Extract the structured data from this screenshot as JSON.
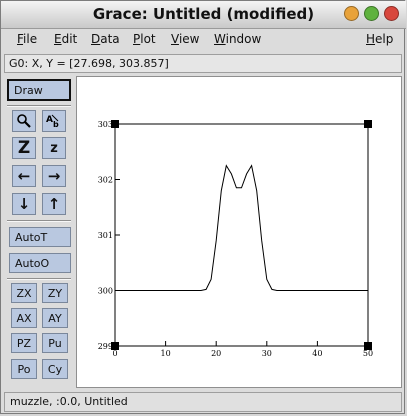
{
  "window": {
    "title": "Grace: Untitled (modified)",
    "buttons": [
      {
        "name": "minimize-button",
        "color": "#e8a23a"
      },
      {
        "name": "maximize-button",
        "color": "#5fb23e"
      },
      {
        "name": "close-button",
        "color": "#d8473d"
      }
    ]
  },
  "menu": {
    "file": {
      "u": "F",
      "rest": "ile"
    },
    "edit": {
      "u": "E",
      "rest": "dit"
    },
    "data": {
      "u": "D",
      "rest": "ata"
    },
    "plot": {
      "u": "P",
      "rest": "lot"
    },
    "view": {
      "u": "V",
      "rest": "iew"
    },
    "window": {
      "u": "W",
      "rest": "indow"
    },
    "help": {
      "u": "H",
      "rest": "elp"
    }
  },
  "coords": "G0: X, Y = [27.698, 303.857]",
  "toolbar": {
    "draw": "Draw",
    "zoom_icon": "magnifier-icon",
    "text_icon": "text-tool-icon",
    "zoom_in": "Z",
    "zoom_out": "z",
    "arrow_left": "←",
    "arrow_right": "→",
    "arrow_down": "↓",
    "arrow_up": "↑",
    "autot": "AutoT",
    "autoo": "AutoO",
    "zx": "ZX",
    "zy": "ZY",
    "ax": "AX",
    "ay": "AY",
    "pz": "PZ",
    "pu": "Pu",
    "po": "Po",
    "cy": "Cy"
  },
  "status": "muzzle, :0.0, Untitled",
  "chart_data": {
    "type": "line",
    "xlim": [
      0,
      50
    ],
    "ylim": [
      299,
      303
    ],
    "x_ticks": [
      "0",
      "10",
      "20",
      "30",
      "40",
      "50"
    ],
    "y_ticks": [
      "299",
      "300",
      "301",
      "302",
      "303"
    ],
    "series": [
      {
        "x": [
          0,
          17,
          18,
          19,
          20,
          21,
          22,
          23,
          24,
          25,
          26,
          27,
          28,
          29,
          30,
          31,
          32,
          50
        ],
        "y": [
          300,
          300,
          300.02,
          300.2,
          300.9,
          301.8,
          302.25,
          302.1,
          301.85,
          301.85,
          302.1,
          302.25,
          301.8,
          300.9,
          300.2,
          300.02,
          300,
          300
        ]
      }
    ]
  }
}
